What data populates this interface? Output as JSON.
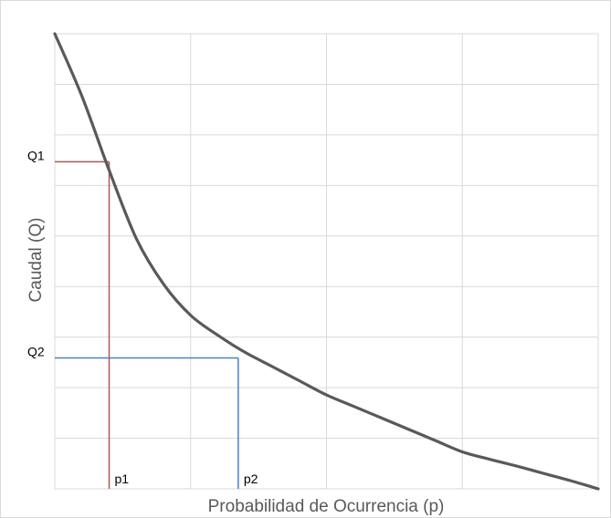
{
  "chart_data": {
    "type": "line",
    "title": "",
    "xlabel": "Probabilidad de Ocurrencia (p)",
    "ylabel": "Caudal (Q)",
    "xlim": [
      0,
      4
    ],
    "ylim": [
      0,
      8
    ],
    "grid": true,
    "tick_labels_shown": false,
    "series": [
      {
        "x": [
          0,
          0.2,
          0.4,
          0.6,
          0.8,
          1.0,
          1.2,
          1.4,
          1.6,
          1.8,
          2.0,
          2.2,
          2.4,
          2.6,
          2.8,
          3.0,
          3.2,
          3.4,
          3.6,
          3.8,
          4.0
        ],
        "y": [
          8.0,
          6.9,
          5.6,
          4.4,
          3.6,
          3.05,
          2.7,
          2.4,
          2.15,
          1.9,
          1.65,
          1.45,
          1.25,
          1.05,
          0.85,
          0.65,
          0.52,
          0.4,
          0.27,
          0.14,
          0.0
        ],
        "color": "#595959"
      }
    ],
    "annotations": [
      {
        "label_y": "Q1",
        "label_x": "p1",
        "x": 0.4,
        "y": 5.75,
        "color": "#c0504d"
      },
      {
        "label_y": "Q2",
        "label_x": "p2",
        "x": 1.35,
        "y": 2.3,
        "color": "#4f81bd"
      }
    ]
  }
}
